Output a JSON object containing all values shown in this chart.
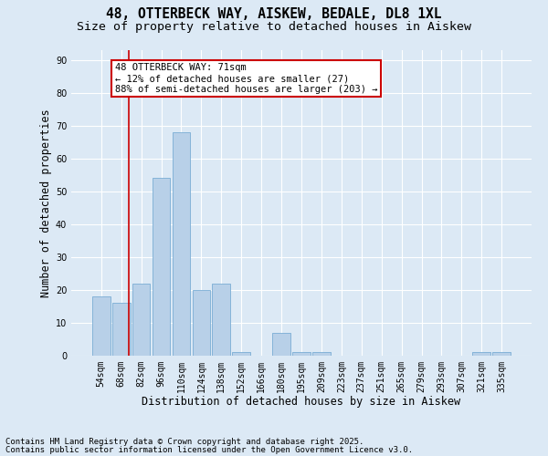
{
  "title1": "48, OTTERBECK WAY, AISKEW, BEDALE, DL8 1XL",
  "title2": "Size of property relative to detached houses in Aiskew",
  "xlabel": "Distribution of detached houses by size in Aiskew",
  "ylabel": "Number of detached properties",
  "categories": [
    "54sqm",
    "68sqm",
    "82sqm",
    "96sqm",
    "110sqm",
    "124sqm",
    "138sqm",
    "152sqm",
    "166sqm",
    "180sqm",
    "195sqm",
    "209sqm",
    "223sqm",
    "237sqm",
    "251sqm",
    "265sqm",
    "279sqm",
    "293sqm",
    "307sqm",
    "321sqm",
    "335sqm"
  ],
  "values": [
    18,
    16,
    22,
    54,
    68,
    20,
    22,
    1,
    0,
    7,
    1,
    1,
    0,
    0,
    0,
    0,
    0,
    0,
    0,
    1,
    1
  ],
  "bar_color": "#b8d0e8",
  "bar_edge_color": "#7aadd4",
  "highlight_bar_index": 1,
  "highlight_line_color": "#cc0000",
  "ylim": [
    0,
    93
  ],
  "yticks": [
    0,
    10,
    20,
    30,
    40,
    50,
    60,
    70,
    80,
    90
  ],
  "annotation_text": "48 OTTERBECK WAY: 71sqm\n← 12% of detached houses are smaller (27)\n88% of semi-detached houses are larger (203) →",
  "annotation_box_facecolor": "#ffffff",
  "annotation_box_edgecolor": "#cc0000",
  "background_color": "#dce9f5",
  "footer1": "Contains HM Land Registry data © Crown copyright and database right 2025.",
  "footer2": "Contains public sector information licensed under the Open Government Licence v3.0.",
  "title1_fontsize": 10.5,
  "title2_fontsize": 9.5,
  "xlabel_fontsize": 8.5,
  "ylabel_fontsize": 8.5,
  "tick_fontsize": 7,
  "annotation_fontsize": 7.5,
  "footer_fontsize": 6.5
}
